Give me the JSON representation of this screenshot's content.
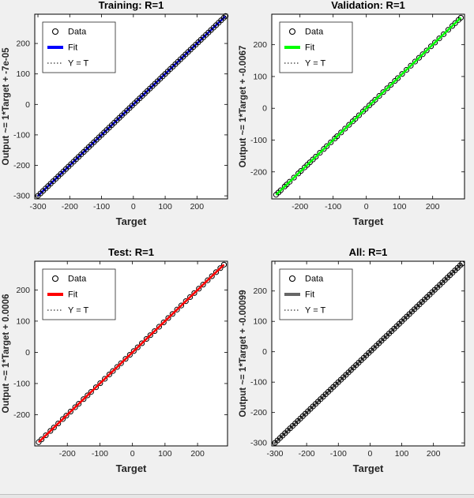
{
  "figure": {
    "background": "#f0f0f0",
    "text_color": "#262626",
    "frame_color": "#000000"
  },
  "chart_data": [
    {
      "type": "scatter",
      "title": "Training: R=1",
      "xlabel": "Target",
      "ylabel": "Output ~= 1*Target + -7e-05",
      "legend": [
        "Data",
        "Fit",
        "Y = T"
      ],
      "legend_position": "upper-left",
      "grid": false,
      "marker_color": "#000000",
      "fit_color": "#0000ff",
      "fit": {
        "slope": 1,
        "intercept": -7e-05
      },
      "fit_over_points": false,
      "xlim": [
        -310,
        296
      ],
      "ylim": [
        -310,
        296
      ],
      "xticks": [
        -300,
        -200,
        -100,
        0,
        100,
        200
      ],
      "yticks": [
        -300,
        -200,
        -100,
        0,
        100,
        200
      ],
      "points_x": [
        -300,
        -292,
        -284,
        -276,
        -268,
        -260,
        -252,
        -244,
        -236,
        -228,
        -220,
        -212,
        -204,
        -196,
        -188,
        -180,
        -172,
        -164,
        -156,
        -148,
        -140,
        -132,
        -124,
        -116,
        -108,
        -100,
        -92,
        -84,
        -76,
        -68,
        -60,
        -52,
        -44,
        -36,
        -28,
        -20,
        -12,
        -4,
        4,
        12,
        20,
        28,
        36,
        44,
        52,
        60,
        68,
        76,
        84,
        92,
        100,
        108,
        116,
        124,
        132,
        140,
        148,
        156,
        164,
        172,
        180,
        188,
        196,
        204,
        212,
        220,
        228,
        236,
        244,
        252,
        260,
        268,
        276,
        284,
        290
      ]
    },
    {
      "type": "scatter",
      "title": "Validation: R=1",
      "xlabel": "Target",
      "ylabel": "Output ~= 1*Target + -0.0067",
      "legend": [
        "Data",
        "Fit",
        "Y = T"
      ],
      "legend_position": "upper-left",
      "grid": false,
      "marker_color": "#000000",
      "fit_color": "#00ff00",
      "fit": {
        "slope": 1,
        "intercept": -0.0067
      },
      "fit_over_points": true,
      "xlim": [
        -285,
        296
      ],
      "ylim": [
        -285,
        296
      ],
      "xticks": [
        -200,
        -100,
        0,
        100,
        200
      ],
      "yticks": [
        -200,
        -100,
        0,
        100,
        200
      ],
      "points_x": [
        -272,
        -265,
        -258,
        -246,
        -240,
        -231,
        -218,
        -205,
        -197,
        -186,
        -178,
        -170,
        -161,
        -152,
        -140,
        -128,
        -119,
        -107,
        -95,
        -88,
        -76,
        -64,
        -52,
        -41,
        -33,
        -22,
        -10,
        -2,
        9,
        18,
        27,
        39,
        51,
        63,
        74,
        86,
        95,
        108,
        121,
        134,
        147,
        159,
        170,
        182,
        195,
        207,
        220,
        233,
        247,
        259,
        268,
        278,
        285
      ]
    },
    {
      "type": "scatter",
      "title": "Test: R=1",
      "xlabel": "Target",
      "ylabel": "Output ~= 1*Target + 0.0006",
      "legend": [
        "Data",
        "Fit",
        "Y = T"
      ],
      "legend_position": "upper-left",
      "grid": false,
      "marker_color": "#000000",
      "fit_color": "#ff0000",
      "fit": {
        "slope": 1,
        "intercept": 0.0006
      },
      "fit_over_points": true,
      "xlim": [
        -300,
        292
      ],
      "ylim": [
        -300,
        292
      ],
      "xticks": [
        -200,
        -100,
        0,
        100,
        200
      ],
      "yticks": [
        -200,
        -100,
        0,
        100,
        200
      ],
      "points_x": [
        -288,
        -279,
        -266,
        -252,
        -241,
        -228,
        -214,
        -203,
        -190,
        -176,
        -165,
        -150,
        -138,
        -127,
        -112,
        -99,
        -85,
        -71,
        -60,
        -47,
        -35,
        -21,
        -8,
        4,
        16,
        29,
        43,
        55,
        68,
        82,
        96,
        110,
        123,
        137,
        150,
        164,
        177,
        190,
        204,
        217,
        231,
        244,
        257,
        270,
        281
      ]
    },
    {
      "type": "scatter",
      "title": "All: R=1",
      "xlabel": "Target",
      "ylabel": "Output ~= 1*Target + -0.00099",
      "legend": [
        "Data",
        "Fit",
        "Y = T"
      ],
      "legend_position": "upper-left",
      "grid": false,
      "marker_color": "#000000",
      "fit_color": "#666666",
      "fit": {
        "slope": 1,
        "intercept": -0.00099
      },
      "fit_over_points": false,
      "xlim": [
        -310,
        298
      ],
      "ylim": [
        -310,
        298
      ],
      "xticks": [
        -300,
        -200,
        -100,
        0,
        100,
        200
      ],
      "yticks": [
        -300,
        -200,
        -100,
        0,
        100,
        200
      ],
      "points_x": [
        -300,
        -292,
        -284,
        -276,
        -268,
        -260,
        -252,
        -244,
        -236,
        -228,
        -220,
        -212,
        -204,
        -196,
        -188,
        -180,
        -172,
        -164,
        -156,
        -148,
        -140,
        -132,
        -124,
        -116,
        -108,
        -100,
        -92,
        -84,
        -76,
        -68,
        -60,
        -52,
        -44,
        -36,
        -28,
        -20,
        -12,
        -4,
        4,
        12,
        20,
        28,
        36,
        44,
        52,
        60,
        68,
        76,
        84,
        92,
        100,
        108,
        116,
        124,
        132,
        140,
        148,
        156,
        164,
        172,
        180,
        188,
        196,
        204,
        212,
        220,
        228,
        236,
        244,
        252,
        260,
        268,
        276,
        284,
        290
      ]
    }
  ]
}
